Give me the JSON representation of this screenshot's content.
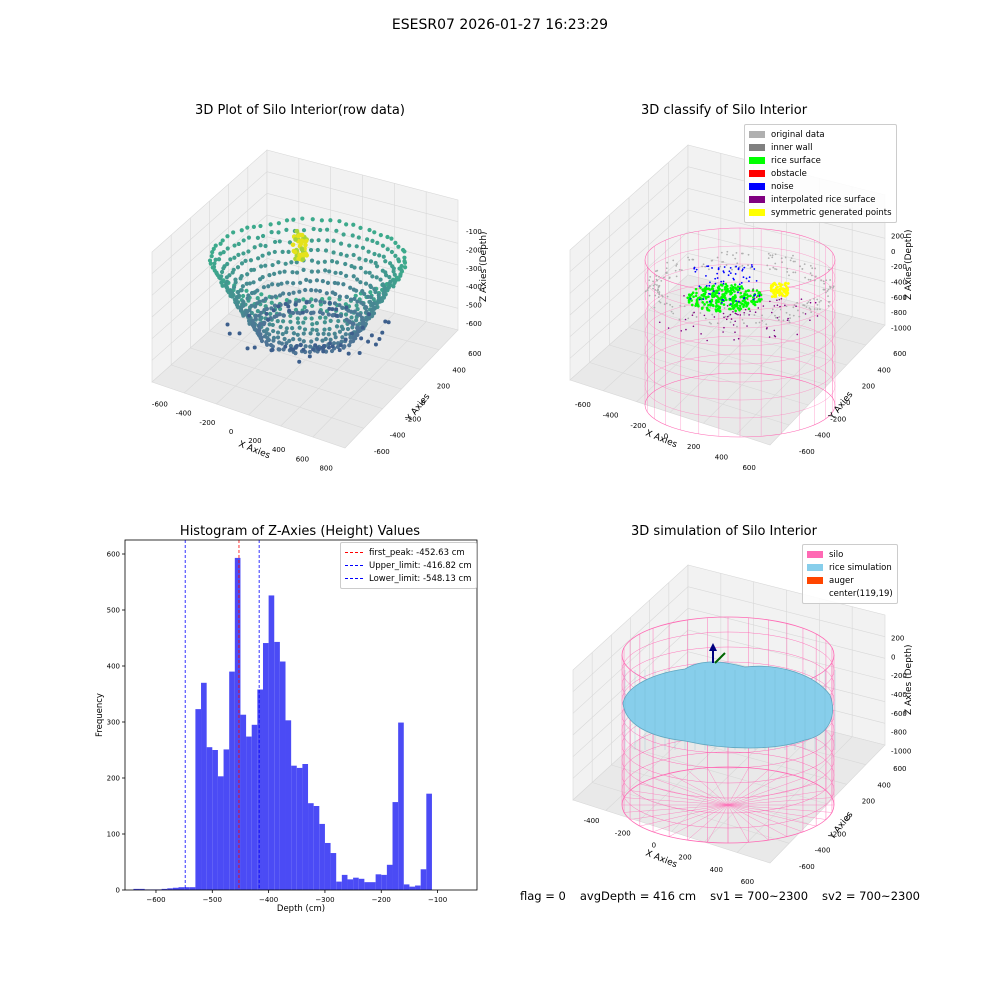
{
  "suptitle": "ESESR07 2026-01-27 16:23:29",
  "status": {
    "flag": "flag = 0",
    "avg_depth": "avgDepth = 416 cm",
    "sv1": "sv1 = 700~2300",
    "sv2": "sv2 = 700~2300"
  },
  "colors": {
    "histogram_bar": "#4b4bf5",
    "first_peak_line": "#ff0000",
    "limit_lines": "#0000ff",
    "silo_wire": "#ff69b4",
    "rice_simulation": "#87ceeb",
    "auger": "#ff4500"
  },
  "chart_data": [
    {
      "type": "scatter",
      "title": "3D Plot of Silo Interior(row data)",
      "xlabel": "X Axies",
      "ylabel": "Y Axies",
      "zlabel": "Z Axies (Depth)",
      "x_ticks": [
        "-600",
        "-400",
        "-200",
        "0",
        "200",
        "400",
        "600",
        "800"
      ],
      "y_ticks": [
        "-600",
        "-400",
        "-200",
        "0",
        "200",
        "400",
        "600"
      ],
      "z_ticks": [
        "-100",
        "-200",
        "-300",
        "-400",
        "-500",
        "-600"
      ]
    },
    {
      "type": "scatter",
      "title": "3D classify of Silo Interior",
      "xlabel": "X Axies",
      "ylabel": "Y Axies",
      "zlabel": "Z Axies (Depth)",
      "x_ticks": [
        "-600",
        "-400",
        "-200",
        "0",
        "200",
        "400",
        "600"
      ],
      "y_ticks": [
        "-600",
        "-400",
        "-200",
        "0",
        "200",
        "400",
        "600"
      ],
      "z_ticks": [
        "200",
        "0",
        "-200",
        "-400",
        "-600",
        "-800",
        "-1000"
      ],
      "legend_position": "upper-right",
      "legend": [
        {
          "label": "original data",
          "color": "#b0b0b0"
        },
        {
          "label": "inner wall",
          "color": "#808080"
        },
        {
          "label": "rice surface",
          "color": "#00ff00"
        },
        {
          "label": "obstacle",
          "color": "#ff0000"
        },
        {
          "label": "noise",
          "color": "#0000ff"
        },
        {
          "label": "interpolated rice surface",
          "color": "#800080"
        },
        {
          "label": "symmetric generated points",
          "color": "#ffff00"
        }
      ]
    },
    {
      "type": "bar",
      "title": "Histogram of Z-Axies (Height) Values",
      "xlabel": "Depth (cm)",
      "ylabel": "Frequency",
      "xlim": [
        -655,
        -30
      ],
      "ylim": [
        0,
        625
      ],
      "x_ticks": [
        -600,
        -500,
        -400,
        -300,
        -200,
        -100
      ],
      "y_ticks": [
        0,
        100,
        200,
        300,
        400,
        500,
        600
      ],
      "bin_width": 10,
      "bins": [
        {
          "start": -640,
          "count": 2
        },
        {
          "start": -630,
          "count": 2
        },
        {
          "start": -620,
          "count": 1
        },
        {
          "start": -610,
          "count": 1
        },
        {
          "start": -600,
          "count": 1
        },
        {
          "start": -590,
          "count": 2
        },
        {
          "start": -580,
          "count": 3
        },
        {
          "start": -570,
          "count": 4
        },
        {
          "start": -560,
          "count": 5
        },
        {
          "start": -550,
          "count": 5
        },
        {
          "start": -540,
          "count": 5
        },
        {
          "start": -530,
          "count": 323
        },
        {
          "start": -520,
          "count": 370
        },
        {
          "start": -510,
          "count": 255
        },
        {
          "start": -500,
          "count": 250
        },
        {
          "start": -490,
          "count": 203
        },
        {
          "start": -480,
          "count": 251
        },
        {
          "start": -470,
          "count": 390
        },
        {
          "start": -460,
          "count": 593
        },
        {
          "start": -450,
          "count": 313
        },
        {
          "start": -440,
          "count": 274
        },
        {
          "start": -430,
          "count": 295
        },
        {
          "start": -420,
          "count": 358
        },
        {
          "start": -410,
          "count": 441
        },
        {
          "start": -400,
          "count": 526
        },
        {
          "start": -390,
          "count": 443
        },
        {
          "start": -380,
          "count": 408
        },
        {
          "start": -370,
          "count": 303
        },
        {
          "start": -360,
          "count": 222
        },
        {
          "start": -350,
          "count": 218
        },
        {
          "start": -340,
          "count": 225
        },
        {
          "start": -330,
          "count": 155
        },
        {
          "start": -320,
          "count": 150
        },
        {
          "start": -310,
          "count": 118
        },
        {
          "start": -300,
          "count": 84
        },
        {
          "start": -290,
          "count": 66
        },
        {
          "start": -280,
          "count": 15
        },
        {
          "start": -270,
          "count": 27
        },
        {
          "start": -260,
          "count": 19
        },
        {
          "start": -250,
          "count": 22
        },
        {
          "start": -240,
          "count": 20
        },
        {
          "start": -230,
          "count": 14
        },
        {
          "start": -220,
          "count": 14
        },
        {
          "start": -210,
          "count": 28
        },
        {
          "start": -200,
          "count": 27
        },
        {
          "start": -190,
          "count": 45
        },
        {
          "start": -180,
          "count": 157
        },
        {
          "start": -170,
          "count": 299
        },
        {
          "start": -160,
          "count": 10
        },
        {
          "start": -150,
          "count": 6
        },
        {
          "start": -140,
          "count": 8
        },
        {
          "start": -130,
          "count": 37
        },
        {
          "start": -120,
          "count": 172
        }
      ],
      "vlines": [
        {
          "label": "first_peak: -452.63 cm",
          "x": -452.63,
          "color": "#ff0000"
        },
        {
          "label": "Upper_limit: -416.82 cm",
          "x": -416.82,
          "color": "#0000ff"
        },
        {
          "label": "Lower_limit: -548.13 cm",
          "x": -548.13,
          "color": "#0000ff"
        }
      ],
      "legend_position": "upper-right"
    },
    {
      "type": "surface",
      "title": "3D simulation of Silo Interior",
      "xlabel": "X Axies",
      "ylabel": "Y Axies",
      "zlabel": "Z Axies (Depth)",
      "x_ticks": [
        "-400",
        "-200",
        "0",
        "200",
        "400",
        "600"
      ],
      "y_ticks": [
        "-600",
        "-400",
        "-200",
        "0",
        "200",
        "400",
        "600"
      ],
      "z_ticks": [
        "200",
        "0",
        "-200",
        "-400",
        "-600",
        "-800",
        "-1000"
      ],
      "legend_position": "upper-right",
      "legend": [
        {
          "label": "silo",
          "color": "#ff69b4"
        },
        {
          "label": "rice simulation",
          "color": "#87ceeb"
        },
        {
          "label": "auger",
          "color": "#ff4500"
        },
        {
          "label": "center(119,19)",
          "color": ""
        }
      ]
    }
  ]
}
